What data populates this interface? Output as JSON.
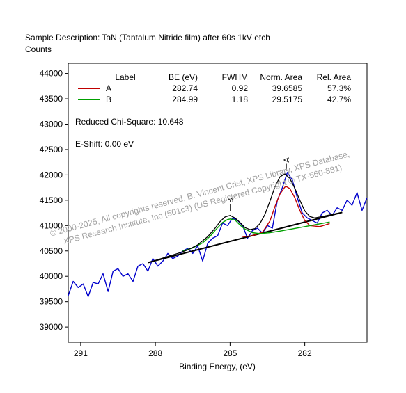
{
  "header": {
    "sample_line": "Sample Description:  TaN (Tantalum Nitride film) after 60s 1kV etch",
    "y_unit": "Counts"
  },
  "legend": {
    "columns": [
      "Label",
      "BE (eV)",
      "FWHM",
      "Norm. Area",
      "Rel. Area"
    ],
    "rows": [
      {
        "label": "A",
        "be": "282.74",
        "fwhm": "0.92",
        "norm_area": "39.6585",
        "rel_area": "57.3%",
        "color": "#c00000"
      },
      {
        "label": "B",
        "be": "284.99",
        "fwhm": "1.18",
        "norm_area": "29.5175",
        "rel_area": "42.7%",
        "color": "#00a000"
      }
    ],
    "chi_square": "Reduced Chi-Square: 10.648",
    "e_shift": "E-Shift: 0.00 eV"
  },
  "watermark": {
    "line1": "© 2000-2025,  All copyrights reserved,   B. Vincent Crist,  XPS Library, XPS Database,",
    "line2": "XPS Research Institute, Inc (501c3)   (US Registered Copyright © TX-560-881)"
  },
  "chart_data": {
    "type": "line",
    "xlabel": "Binding Energy, (eV)",
    "ylabel": "Counts",
    "x_reversed": true,
    "xlim": [
      291.5,
      279.5
    ],
    "ylim": [
      38700,
      44200
    ],
    "x_ticks": [
      291,
      288,
      285,
      282
    ],
    "y_ticks": [
      39000,
      39500,
      40000,
      40500,
      41000,
      41500,
      42000,
      42500,
      43000,
      43500,
      44000
    ],
    "peak_labels": [
      {
        "text": "A",
        "x": 282.74,
        "y": 42080
      },
      {
        "text": "B",
        "x": 284.99,
        "y": 41280
      }
    ],
    "series": [
      {
        "name": "raw",
        "role": "raw",
        "color": "#0000cc",
        "x": [
          291.5,
          291.3,
          291.1,
          290.9,
          290.7,
          290.5,
          290.3,
          290.1,
          289.9,
          289.7,
          289.5,
          289.3,
          289.1,
          288.9,
          288.7,
          288.5,
          288.3,
          288.1,
          287.9,
          287.7,
          287.5,
          287.3,
          287.1,
          286.9,
          286.7,
          286.5,
          286.3,
          286.1,
          285.9,
          285.7,
          285.5,
          285.3,
          285.1,
          284.9,
          284.7,
          284.5,
          284.3,
          284.1,
          283.9,
          283.7,
          283.5,
          283.3,
          283.1,
          282.9,
          282.7,
          282.5,
          282.3,
          282.1,
          281.9,
          281.7,
          281.5,
          281.3,
          281.1,
          280.9,
          280.7,
          280.5,
          280.3,
          280.1,
          279.9,
          279.7,
          279.5
        ],
        "y": [
          39620,
          39900,
          39780,
          39850,
          39600,
          39880,
          39850,
          40050,
          39700,
          40100,
          40150,
          40000,
          40050,
          39900,
          40200,
          40250,
          40100,
          40350,
          40200,
          40300,
          40450,
          40350,
          40400,
          40500,
          40550,
          40450,
          40600,
          40300,
          40650,
          40750,
          40800,
          41050,
          41000,
          41150,
          41100,
          41000,
          40750,
          40900,
          40950,
          40850,
          41000,
          40950,
          41500,
          41750,
          42050,
          41900,
          41550,
          41250,
          41150,
          41100,
          41050,
          41250,
          41300,
          41200,
          41350,
          41300,
          41500,
          41400,
          41650,
          41300,
          41550
        ]
      },
      {
        "name": "envelope",
        "role": "envelope",
        "color": "#000000",
        "x": [
          288.3,
          287.9,
          287.5,
          287.1,
          286.7,
          286.3,
          285.9,
          285.6,
          285.4,
          285.2,
          285.0,
          284.8,
          284.6,
          284.4,
          284.2,
          284.0,
          283.8,
          283.6,
          283.4,
          283.2,
          283.0,
          282.8,
          282.6,
          282.4,
          282.2,
          282.0,
          281.8,
          281.6,
          281.3,
          281.0,
          280.7,
          280.5
        ],
        "y": [
          40270,
          40330,
          40390,
          40450,
          40520,
          40620,
          40780,
          40950,
          41080,
          41170,
          41200,
          41150,
          41060,
          40960,
          40920,
          40940,
          41040,
          41220,
          41480,
          41760,
          41960,
          42020,
          41930,
          41740,
          41500,
          41290,
          41180,
          41150,
          41180,
          41210,
          41240,
          41260
        ]
      },
      {
        "name": "A",
        "role": "component",
        "color": "#c00000",
        "x": [
          284.5,
          284.1,
          283.7,
          283.4,
          283.2,
          283.0,
          282.8,
          282.74,
          282.6,
          282.4,
          282.2,
          282.0,
          281.8,
          281.4,
          281.0
        ],
        "y": [
          40780,
          40800,
          40870,
          41090,
          41370,
          41620,
          41760,
          41770,
          41730,
          41550,
          41300,
          41100,
          41000,
          40980,
          41040
        ]
      },
      {
        "name": "B",
        "role": "component",
        "color": "#00a000",
        "x": [
          286.9,
          286.5,
          286.1,
          285.8,
          285.5,
          285.3,
          285.1,
          284.99,
          284.8,
          284.6,
          284.4,
          284.1,
          283.8,
          283.4,
          283.0,
          282.0,
          281.0
        ],
        "y": [
          40500,
          40560,
          40660,
          40790,
          40960,
          41060,
          41120,
          41130,
          41110,
          41010,
          40930,
          40860,
          40840,
          40860,
          40890,
          40980,
          41070
        ]
      },
      {
        "name": "background",
        "role": "background",
        "color": "#000000",
        "x": [
          288.3,
          280.5
        ],
        "y": [
          40270,
          41260
        ]
      }
    ]
  }
}
